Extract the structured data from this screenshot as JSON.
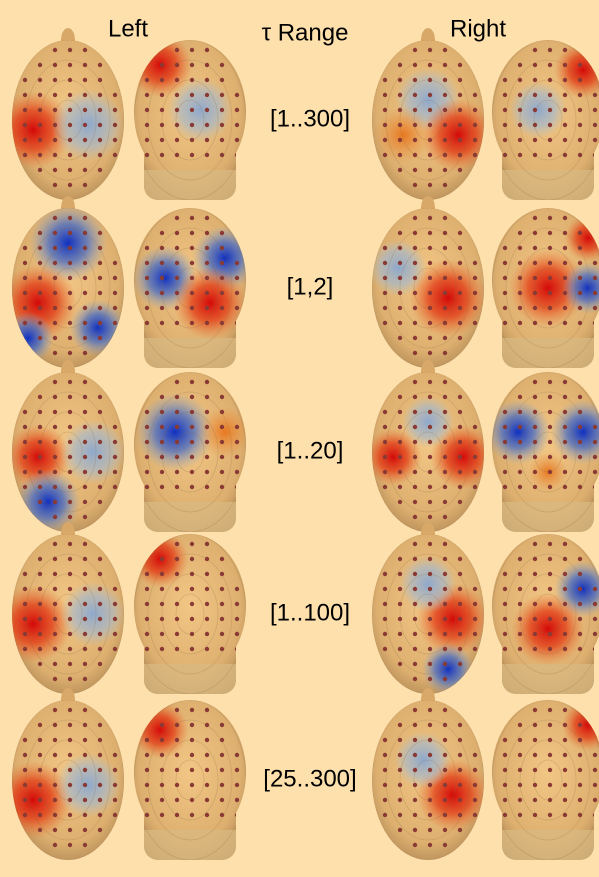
{
  "header": {
    "left": "Left",
    "middle": "τ Range",
    "right": "Right"
  },
  "rows": [
    "[1..300]",
    "[1,2]",
    "[1..20]",
    "[1..100]",
    "[25..300]"
  ]
}
